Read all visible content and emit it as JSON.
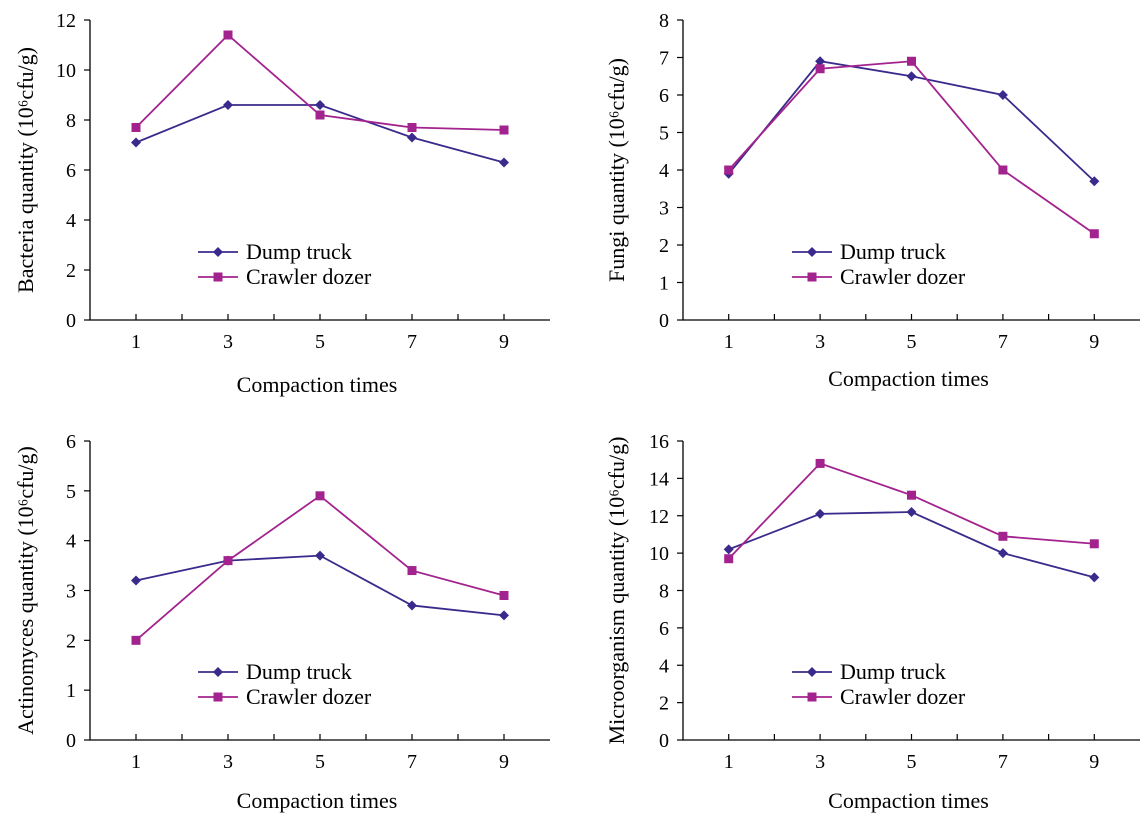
{
  "colors": {
    "dump_truck": "#3b2a8c",
    "crawler_dozer": "#a3238e"
  },
  "chart_data": [
    {
      "type": "line",
      "x": [
        1,
        3,
        5,
        7,
        9
      ],
      "xlabel": "Compaction times",
      "ylabel": "Bacteria quantity (10⁶cfu/g)",
      "ylim": [
        0,
        12
      ],
      "yticks": [
        0,
        2,
        4,
        6,
        8,
        10,
        12
      ],
      "xticks": [
        1,
        3,
        5,
        7,
        9
      ],
      "legend": "bottom-center",
      "grid": false,
      "series": [
        {
          "name": "Dump truck",
          "marker": "diamond",
          "values": [
            7.1,
            8.6,
            8.6,
            7.3,
            6.3
          ]
        },
        {
          "name": "Crawler dozer",
          "marker": "square",
          "values": [
            7.7,
            11.4,
            8.2,
            7.7,
            7.6
          ]
        }
      ]
    },
    {
      "type": "line",
      "x": [
        1,
        3,
        5,
        7,
        9
      ],
      "xlabel": "Compaction times",
      "ylabel": "Fungi quantity (10⁶cfu/g)",
      "ylim": [
        0,
        8
      ],
      "yticks": [
        0,
        1,
        2,
        3,
        4,
        5,
        6,
        7,
        8
      ],
      "xticks": [
        1,
        3,
        5,
        7,
        9
      ],
      "legend": "bottom-center",
      "grid": false,
      "series": [
        {
          "name": "Dump truck",
          "marker": "diamond",
          "values": [
            3.9,
            6.9,
            6.5,
            6.0,
            3.7
          ]
        },
        {
          "name": "Crawler dozer",
          "marker": "square",
          "values": [
            4.0,
            6.7,
            6.9,
            4.0,
            2.3
          ]
        }
      ]
    },
    {
      "type": "line",
      "x": [
        1,
        3,
        5,
        7,
        9
      ],
      "xlabel": "Compaction times",
      "ylabel": "Actinomyces quantity (10⁶cfu/g)",
      "ylim": [
        0,
        6
      ],
      "yticks": [
        0,
        1,
        2,
        3,
        4,
        5,
        6
      ],
      "xticks": [
        1,
        3,
        5,
        7,
        9
      ],
      "legend": "bottom-center",
      "grid": false,
      "series": [
        {
          "name": "Dump truck",
          "marker": "diamond",
          "values": [
            3.2,
            3.6,
            3.7,
            2.7,
            2.5
          ]
        },
        {
          "name": "Crawler dozer",
          "marker": "square",
          "values": [
            2.0,
            3.6,
            4.9,
            3.4,
            2.9
          ]
        }
      ]
    },
    {
      "type": "line",
      "x": [
        1,
        3,
        5,
        7,
        9
      ],
      "xlabel": "Compaction times",
      "ylabel": "Microorganism quantity (10⁶cfu/g)",
      "ylim": [
        0,
        16
      ],
      "yticks": [
        0,
        2,
        4,
        6,
        8,
        10,
        12,
        14,
        16
      ],
      "xticks": [
        1,
        3,
        5,
        7,
        9
      ],
      "legend": "bottom-center",
      "grid": false,
      "series": [
        {
          "name": "Dump truck",
          "marker": "diamond",
          "values": [
            10.2,
            12.1,
            12.2,
            10.0,
            8.7
          ]
        },
        {
          "name": "Crawler dozer",
          "marker": "square",
          "values": [
            9.7,
            14.8,
            13.1,
            10.9,
            10.5
          ]
        }
      ]
    }
  ]
}
